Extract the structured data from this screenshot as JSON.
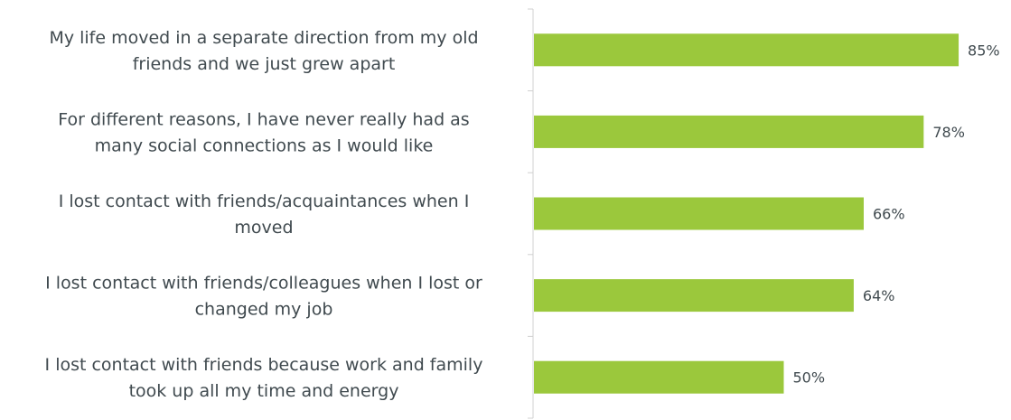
{
  "chart_data": {
    "type": "bar",
    "orientation": "horizontal",
    "categories": [
      [
        "My life moved in a separate direction from my old",
        "friends and we just grew apart"
      ],
      [
        "For different reasons, I have never really had as",
        "many social connections as I would like"
      ],
      [
        "I lost contact with friends/acquaintances when I",
        "moved"
      ],
      [
        "I lost contact with friends/colleagues when I lost or",
        "changed my job"
      ],
      [
        "I lost contact with friends because work and family",
        "took up all my time and energy"
      ]
    ],
    "values": [
      85,
      78,
      66,
      64,
      50
    ],
    "value_labels": [
      "85%",
      "78%",
      "66%",
      "64%",
      "50%"
    ],
    "xlim": [
      0,
      100
    ],
    "grid": false,
    "legend": "none",
    "bar_color": "#9bc83c",
    "axis_color": "#d0d0d0",
    "text_color": "#404a4f"
  }
}
